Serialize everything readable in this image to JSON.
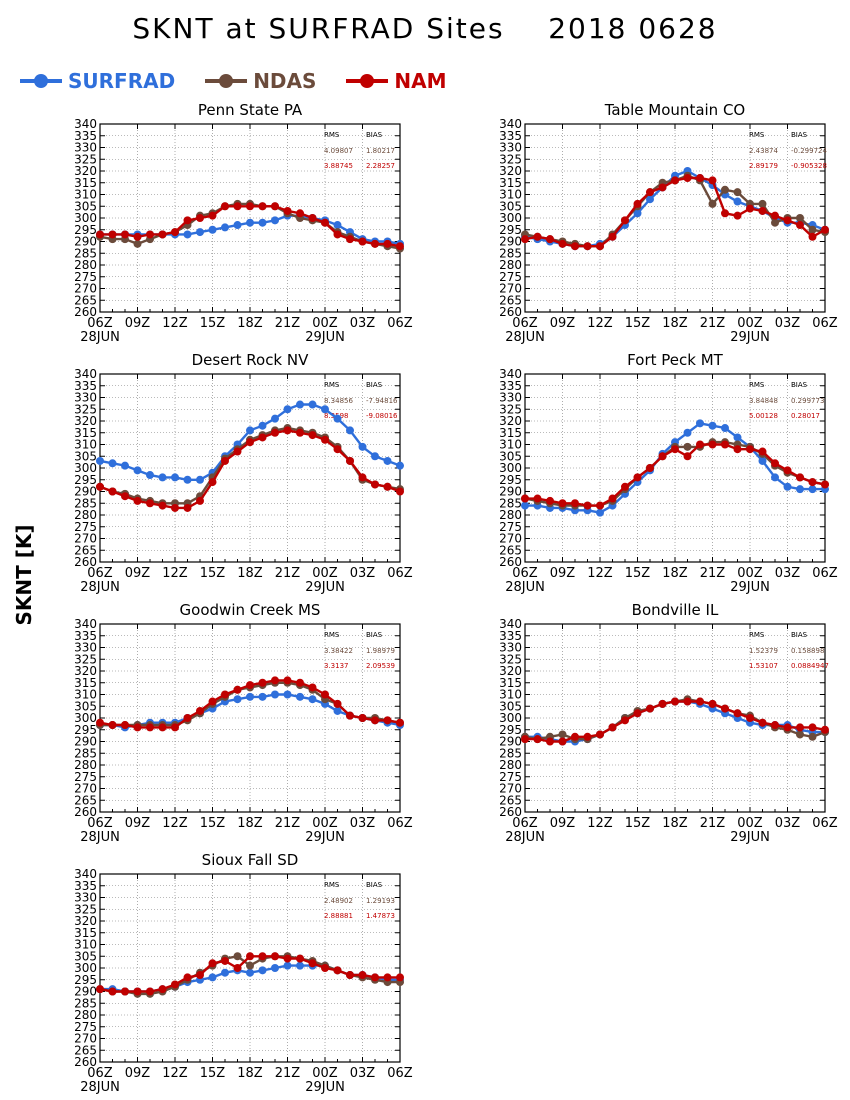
{
  "title": {
    "variable": "SKNT at SURFRAD Sites",
    "date": "2018 0628"
  },
  "ylabel": "SKNT [K]",
  "legend": [
    {
      "name": "SURFRAD",
      "color": "#2f6fdb"
    },
    {
      "name": "NDAS",
      "color": "#6b4b3b"
    },
    {
      "name": "NAM",
      "color": "#c00000"
    }
  ],
  "stats_header": {
    "rms": "RMS",
    "bias": "BIAS"
  },
  "chart_data": [
    {
      "type": "line",
      "title": "Penn State PA",
      "x": [
        "06Z",
        "07Z",
        "08Z",
        "09Z",
        "10Z",
        "11Z",
        "12Z",
        "13Z",
        "14Z",
        "15Z",
        "16Z",
        "17Z",
        "18Z",
        "19Z",
        "20Z",
        "21Z",
        "22Z",
        "23Z",
        "00Z",
        "01Z",
        "02Z",
        "03Z",
        "04Z",
        "05Z",
        "06Z"
      ],
      "xticks": [
        "06Z",
        "09Z",
        "12Z",
        "15Z",
        "18Z",
        "21Z",
        "00Z",
        "03Z",
        "06Z"
      ],
      "date_labels": [
        "28JUN",
        "29JUN"
      ],
      "ylim": [
        260,
        340
      ],
      "yticks": [
        260,
        265,
        270,
        275,
        280,
        285,
        290,
        295,
        300,
        305,
        310,
        315,
        320,
        325,
        330,
        335,
        340
      ],
      "grid": true,
      "stats": {
        "NDAS": {
          "rms": "4.09807",
          "bias": "1.80217"
        },
        "NAM": {
          "rms": "3.88745",
          "bias": "2.28257"
        }
      },
      "series": [
        {
          "name": "SURFRAD",
          "values": [
            293,
            293,
            293,
            293,
            293,
            293,
            293,
            293,
            294,
            295,
            296,
            297,
            298,
            298,
            299,
            301,
            301,
            300,
            299,
            297,
            294,
            291,
            290,
            290,
            289
          ]
        },
        {
          "name": "NDAS",
          "values": [
            292,
            291,
            291,
            289,
            291,
            293,
            294,
            297,
            301,
            302,
            305,
            306,
            306,
            305,
            305,
            302,
            300,
            299,
            298,
            294,
            292,
            290,
            289,
            288,
            287
          ]
        },
        {
          "name": "NAM",
          "values": [
            293,
            293,
            293,
            292,
            293,
            293,
            294,
            299,
            300,
            301,
            305,
            305,
            305,
            305,
            305,
            303,
            302,
            300,
            298,
            293,
            291,
            290,
            289,
            289,
            288
          ]
        }
      ]
    },
    {
      "type": "line",
      "title": "Table Mountain CO",
      "x": [
        "06Z",
        "07Z",
        "08Z",
        "09Z",
        "10Z",
        "11Z",
        "12Z",
        "13Z",
        "14Z",
        "15Z",
        "16Z",
        "17Z",
        "18Z",
        "19Z",
        "20Z",
        "21Z",
        "22Z",
        "23Z",
        "00Z",
        "01Z",
        "02Z",
        "03Z",
        "04Z",
        "05Z",
        "06Z"
      ],
      "xticks": [
        "06Z",
        "09Z",
        "12Z",
        "15Z",
        "18Z",
        "21Z",
        "00Z",
        "03Z",
        "06Z"
      ],
      "date_labels": [
        "28JUN",
        "29JUN"
      ],
      "ylim": [
        260,
        340
      ],
      "yticks": [
        260,
        265,
        270,
        275,
        280,
        285,
        290,
        295,
        300,
        305,
        310,
        315,
        320,
        325,
        330,
        335,
        340
      ],
      "grid": true,
      "stats": {
        "NDAS": {
          "rms": "2.43874",
          "bias": "-0.299724"
        },
        "NAM": {
          "rms": "2.89179",
          "bias": "-0.905328"
        }
      },
      "series": [
        {
          "name": "SURFRAD",
          "values": [
            292,
            291,
            290,
            289,
            288,
            288,
            289,
            292,
            297,
            302,
            308,
            313,
            318,
            320,
            317,
            314,
            310,
            307,
            305,
            303,
            300,
            298,
            298,
            297,
            295
          ]
        },
        {
          "name": "NDAS",
          "values": [
            293,
            292,
            291,
            290,
            289,
            288,
            288,
            293,
            299,
            305,
            311,
            315,
            316,
            318,
            316,
            306,
            312,
            311,
            306,
            306,
            298,
            300,
            300,
            295,
            294
          ]
        },
        {
          "name": "NAM",
          "values": [
            291,
            292,
            291,
            289,
            288,
            288,
            288,
            292,
            299,
            306,
            311,
            313,
            316,
            317,
            317,
            316,
            302,
            301,
            304,
            303,
            301,
            299,
            297,
            292,
            295
          ]
        }
      ]
    },
    {
      "type": "line",
      "title": "Desert Rock NV",
      "x": [
        "06Z",
        "07Z",
        "08Z",
        "09Z",
        "10Z",
        "11Z",
        "12Z",
        "13Z",
        "14Z",
        "15Z",
        "16Z",
        "17Z",
        "18Z",
        "19Z",
        "20Z",
        "21Z",
        "22Z",
        "23Z",
        "00Z",
        "01Z",
        "02Z",
        "03Z",
        "04Z",
        "05Z",
        "06Z"
      ],
      "xticks": [
        "06Z",
        "09Z",
        "12Z",
        "15Z",
        "18Z",
        "21Z",
        "00Z",
        "03Z",
        "06Z"
      ],
      "date_labels": [
        "28JUN",
        "29JUN"
      ],
      "ylim": [
        260,
        340
      ],
      "yticks": [
        260,
        265,
        270,
        275,
        280,
        285,
        290,
        295,
        300,
        305,
        310,
        315,
        320,
        325,
        330,
        335,
        340
      ],
      "grid": true,
      "stats": {
        "NDAS": {
          "rms": "8.34856",
          "bias": "-7.94816"
        },
        "NAM": {
          "rms": "8.3598",
          "bias": "-9.08016"
        }
      },
      "series": [
        {
          "name": "SURFRAD",
          "values": [
            303,
            302,
            301,
            299,
            297,
            296,
            296,
            295,
            295,
            298,
            305,
            310,
            316,
            318,
            321,
            325,
            327,
            327,
            325,
            321,
            316,
            309,
            305,
            303,
            301
          ]
        },
        {
          "name": "NDAS",
          "values": [
            292,
            290,
            289,
            287,
            286,
            285,
            285,
            285,
            288,
            296,
            304,
            308,
            312,
            314,
            316,
            317,
            316,
            315,
            313,
            309,
            303,
            295,
            293,
            292,
            291
          ]
        },
        {
          "name": "NAM",
          "values": [
            292,
            290,
            288,
            286,
            285,
            284,
            283,
            283,
            286,
            294,
            303,
            307,
            311,
            313,
            315,
            316,
            315,
            314,
            312,
            308,
            303,
            296,
            293,
            292,
            290
          ]
        }
      ]
    },
    {
      "type": "line",
      "title": "Fort Peck MT",
      "x": [
        "06Z",
        "07Z",
        "08Z",
        "09Z",
        "10Z",
        "11Z",
        "12Z",
        "13Z",
        "14Z",
        "15Z",
        "16Z",
        "17Z",
        "18Z",
        "19Z",
        "20Z",
        "21Z",
        "22Z",
        "23Z",
        "00Z",
        "01Z",
        "02Z",
        "03Z",
        "04Z",
        "05Z",
        "06Z"
      ],
      "xticks": [
        "06Z",
        "09Z",
        "12Z",
        "15Z",
        "18Z",
        "21Z",
        "00Z",
        "03Z",
        "06Z"
      ],
      "date_labels": [
        "28JUN",
        "29JUN"
      ],
      "ylim": [
        260,
        340
      ],
      "yticks": [
        260,
        265,
        270,
        275,
        280,
        285,
        290,
        295,
        300,
        305,
        310,
        315,
        320,
        325,
        330,
        335,
        340
      ],
      "grid": true,
      "stats": {
        "NDAS": {
          "rms": "3.84848",
          "bias": "0.299773"
        },
        "NAM": {
          "rms": "5.00128",
          "bias": "0.28017"
        }
      },
      "series": [
        {
          "name": "SURFRAD",
          "values": [
            284,
            284,
            283,
            283,
            282,
            282,
            281,
            284,
            289,
            294,
            299,
            306,
            311,
            315,
            319,
            318,
            317,
            313,
            309,
            303,
            296,
            292,
            291,
            291,
            291
          ]
        },
        {
          "name": "NDAS",
          "values": [
            287,
            286,
            285,
            284,
            284,
            284,
            284,
            286,
            291,
            296,
            300,
            305,
            309,
            309,
            309,
            311,
            311,
            310,
            309,
            306,
            301,
            298,
            296,
            294,
            293
          ]
        },
        {
          "name": "NAM",
          "values": [
            287,
            287,
            286,
            285,
            285,
            284,
            284,
            287,
            292,
            296,
            300,
            305,
            308,
            305,
            310,
            310,
            310,
            308,
            308,
            307,
            302,
            299,
            296,
            294,
            293
          ]
        }
      ]
    },
    {
      "type": "line",
      "title": "Goodwin Creek MS",
      "x": [
        "06Z",
        "07Z",
        "08Z",
        "09Z",
        "10Z",
        "11Z",
        "12Z",
        "13Z",
        "14Z",
        "15Z",
        "16Z",
        "17Z",
        "18Z",
        "19Z",
        "20Z",
        "21Z",
        "22Z",
        "23Z",
        "00Z",
        "01Z",
        "02Z",
        "03Z",
        "04Z",
        "05Z",
        "06Z"
      ],
      "xticks": [
        "06Z",
        "09Z",
        "12Z",
        "15Z",
        "18Z",
        "21Z",
        "00Z",
        "03Z",
        "06Z"
      ],
      "date_labels": [
        "28JUN",
        "29JUN"
      ],
      "ylim": [
        260,
        340
      ],
      "yticks": [
        260,
        265,
        270,
        275,
        280,
        285,
        290,
        295,
        300,
        305,
        310,
        315,
        320,
        325,
        330,
        335,
        340
      ],
      "grid": true,
      "stats": {
        "NDAS": {
          "rms": "3.38422",
          "bias": "1.98979"
        },
        "NAM": {
          "rms": "3.3137",
          "bias": "2.09539"
        }
      },
      "series": [
        {
          "name": "SURFRAD",
          "values": [
            297,
            297,
            296,
            297,
            298,
            298,
            298,
            300,
            302,
            304,
            307,
            308,
            309,
            309,
            310,
            310,
            309,
            308,
            306,
            303,
            301,
            300,
            299,
            298,
            297
          ]
        },
        {
          "name": "NDAS",
          "values": [
            297,
            297,
            297,
            297,
            297,
            297,
            297,
            299,
            302,
            306,
            309,
            312,
            313,
            314,
            315,
            315,
            314,
            312,
            308,
            306,
            301,
            300,
            300,
            299,
            298
          ]
        },
        {
          "name": "NAM",
          "values": [
            298,
            297,
            297,
            296,
            296,
            296,
            296,
            300,
            303,
            307,
            310,
            312,
            314,
            315,
            316,
            316,
            315,
            313,
            310,
            306,
            301,
            300,
            299,
            299,
            298
          ]
        }
      ]
    },
    {
      "type": "line",
      "title": "Bondville IL",
      "x": [
        "06Z",
        "07Z",
        "08Z",
        "09Z",
        "10Z",
        "11Z",
        "12Z",
        "13Z",
        "14Z",
        "15Z",
        "16Z",
        "17Z",
        "18Z",
        "19Z",
        "20Z",
        "21Z",
        "22Z",
        "23Z",
        "00Z",
        "01Z",
        "02Z",
        "03Z",
        "04Z",
        "05Z",
        "06Z"
      ],
      "xticks": [
        "06Z",
        "09Z",
        "12Z",
        "15Z",
        "18Z",
        "21Z",
        "00Z",
        "03Z",
        "06Z"
      ],
      "date_labels": [
        "28JUN",
        "29JUN"
      ],
      "ylim": [
        260,
        340
      ],
      "yticks": [
        260,
        265,
        270,
        275,
        280,
        285,
        290,
        295,
        300,
        305,
        310,
        315,
        320,
        325,
        330,
        335,
        340
      ],
      "grid": true,
      "stats": {
        "NDAS": {
          "rms": "1.52379",
          "bias": "0.158898"
        },
        "NAM": {
          "rms": "1.53107",
          "bias": "0.0884947"
        }
      },
      "series": [
        {
          "name": "SURFRAD",
          "values": [
            292,
            292,
            291,
            290,
            290,
            291,
            293,
            296,
            300,
            302,
            304,
            306,
            307,
            307,
            306,
            304,
            302,
            300,
            298,
            297,
            297,
            297,
            295,
            294,
            294
          ]
        },
        {
          "name": "NDAS",
          "values": [
            292,
            291,
            292,
            293,
            291,
            291,
            293,
            296,
            300,
            303,
            304,
            306,
            307,
            308,
            307,
            306,
            304,
            302,
            301,
            298,
            296,
            295,
            293,
            292,
            294
          ]
        },
        {
          "name": "NAM",
          "values": [
            291,
            291,
            290,
            290,
            292,
            292,
            293,
            296,
            299,
            302,
            304,
            306,
            307,
            307,
            307,
            306,
            304,
            302,
            300,
            298,
            297,
            296,
            296,
            296,
            295
          ]
        }
      ]
    },
    {
      "type": "line",
      "title": "Sioux Fall SD",
      "x": [
        "06Z",
        "07Z",
        "08Z",
        "09Z",
        "10Z",
        "11Z",
        "12Z",
        "13Z",
        "14Z",
        "15Z",
        "16Z",
        "17Z",
        "18Z",
        "19Z",
        "20Z",
        "21Z",
        "22Z",
        "23Z",
        "00Z",
        "01Z",
        "02Z",
        "03Z",
        "04Z",
        "05Z",
        "06Z"
      ],
      "xticks": [
        "06Z",
        "09Z",
        "12Z",
        "15Z",
        "18Z",
        "21Z",
        "00Z",
        "03Z",
        "06Z"
      ],
      "date_labels": [
        "28JUN",
        "29JUN"
      ],
      "ylim": [
        260,
        340
      ],
      "yticks": [
        260,
        265,
        270,
        275,
        280,
        285,
        290,
        295,
        300,
        305,
        310,
        315,
        320,
        325,
        330,
        335,
        340
      ],
      "grid": true,
      "stats": {
        "NDAS": {
          "rms": "2.48902",
          "bias": "1.29193"
        },
        "NAM": {
          "rms": "2.88881",
          "bias": "1.47873"
        }
      },
      "series": [
        {
          "name": "SURFRAD",
          "values": [
            291,
            291,
            290,
            290,
            290,
            291,
            292,
            294,
            295,
            296,
            298,
            299,
            298,
            299,
            300,
            301,
            301,
            301,
            301,
            299,
            297,
            297,
            296,
            295,
            295
          ]
        },
        {
          "name": "NDAS",
          "values": [
            291,
            290,
            290,
            289,
            289,
            290,
            292,
            295,
            298,
            301,
            304,
            305,
            301,
            304,
            305,
            305,
            304,
            303,
            301,
            299,
            297,
            296,
            295,
            294,
            294
          ]
        },
        {
          "name": "NAM",
          "values": [
            291,
            290,
            290,
            290,
            290,
            291,
            293,
            296,
            297,
            302,
            303,
            300,
            305,
            305,
            305,
            304,
            304,
            302,
            300,
            299,
            297,
            297,
            296,
            296,
            296
          ]
        }
      ]
    }
  ]
}
